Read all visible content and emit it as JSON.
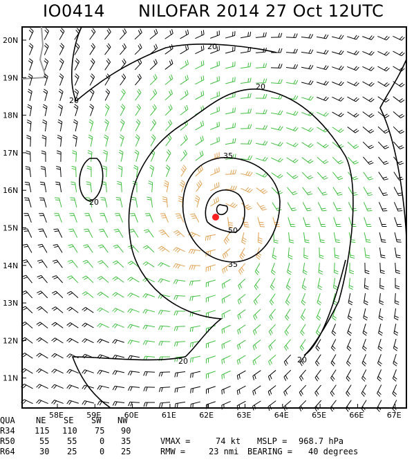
{
  "header": {
    "id": "IO0414",
    "title": "NILOFAR 2014 27 Oct 12UTC"
  },
  "map": {
    "lat_labels": [
      "20N",
      "19N",
      "18N",
      "17N",
      "16N",
      "15N",
      "14N",
      "13N",
      "12N",
      "11N"
    ],
    "lon_labels": [
      "58E",
      "59E",
      "60E",
      "61E",
      "62E",
      "63E",
      "64E",
      "65E",
      "66E",
      "67E"
    ],
    "contour_labels": [
      "20",
      "20",
      "20",
      "20",
      "20",
      "35",
      "35",
      "50",
      "20"
    ],
    "storm_center": {
      "lat": 15.4,
      "lon": 62.2
    },
    "colors": {
      "wind_calm": "#000000",
      "wind_34kt": "#3fbf3f",
      "wind_50kt": "#e0a050",
      "center": "#ff2020",
      "coast": "#999999"
    }
  },
  "table": {
    "col_headers": [
      "QUA",
      "NE",
      "SE",
      "SW",
      "NW"
    ],
    "rows": [
      [
        "R34",
        "115",
        "110",
        "75",
        "90"
      ],
      [
        "R50",
        "55",
        "55",
        "0",
        "35"
      ],
      [
        "R64",
        "30",
        "25",
        "0",
        "25"
      ]
    ]
  },
  "stats": {
    "vmax_label": "VMAX =",
    "vmax_value": "74 kt",
    "mslp_label": "MSLP =",
    "mslp_value": "968.7 hPa",
    "rmw_label": "RMW =",
    "rmw_value": "23 nmi",
    "bearing_label": "BEARING =",
    "bearing_value": "40 degrees"
  }
}
